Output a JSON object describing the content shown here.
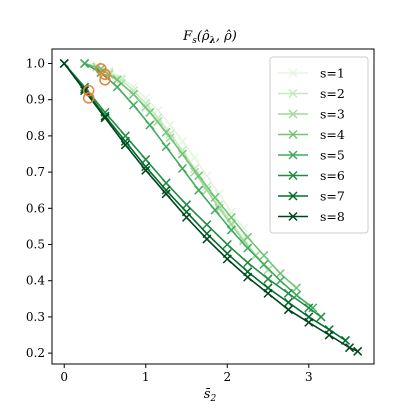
{
  "chart_data": {
    "type": "line",
    "title": "F_s(ρ̂_λ, ρ̂)",
    "xlabel": "s̄₂",
    "ylabel": "",
    "xlim": [
      -0.15,
      3.8
    ],
    "ylim": [
      0.17,
      1.04
    ],
    "xticks": [
      "0",
      "1",
      "2",
      "3"
    ],
    "yticks": [
      "0.2",
      "0.3",
      "0.4",
      "0.5",
      "0.6",
      "0.7",
      "0.8",
      "0.9",
      "1.0"
    ],
    "grid": false,
    "legend_position": "top-right",
    "series": [
      {
        "name": "s=1",
        "color": "#e5f5e0",
        "x": [
          0.25,
          0.4,
          0.55,
          0.7,
          0.85,
          1.0,
          1.15,
          1.3,
          1.45,
          1.6,
          1.75,
          1.9,
          2.05,
          2.2
        ],
        "y": [
          1.0,
          0.995,
          0.98,
          0.96,
          0.935,
          0.905,
          0.87,
          0.83,
          0.785,
          0.74,
          0.69,
          0.64,
          0.59,
          0.545
        ]
      },
      {
        "name": "s=2",
        "color": "#c7e9c0",
        "x": [
          0.25,
          0.4,
          0.55,
          0.7,
          0.85,
          1.0,
          1.15,
          1.3,
          1.45,
          1.6,
          1.75,
          1.9,
          2.05,
          2.2,
          2.35
        ],
        "y": [
          1.0,
          0.99,
          0.975,
          0.955,
          0.925,
          0.89,
          0.85,
          0.805,
          0.76,
          0.71,
          0.66,
          0.61,
          0.56,
          0.515,
          0.47
        ]
      },
      {
        "name": "s=3",
        "color": "#a1d99b",
        "x": [
          0.25,
          0.4,
          0.55,
          0.7,
          0.85,
          1.0,
          1.15,
          1.3,
          1.45,
          1.6,
          1.75,
          1.9,
          2.05,
          2.2,
          2.35,
          2.5
        ],
        "y": [
          1.0,
          0.99,
          0.97,
          0.945,
          0.915,
          0.88,
          0.84,
          0.795,
          0.75,
          0.7,
          0.65,
          0.6,
          0.555,
          0.51,
          0.47,
          0.43
        ]
      },
      {
        "name": "s=4",
        "color": "#74c476",
        "x": [
          0.25,
          0.45,
          0.65,
          0.85,
          1.05,
          1.25,
          1.45,
          1.65,
          1.85,
          2.05,
          2.25,
          2.45,
          2.65,
          2.85
        ],
        "y": [
          1.0,
          0.985,
          0.955,
          0.915,
          0.865,
          0.81,
          0.75,
          0.69,
          0.63,
          0.575,
          0.52,
          0.47,
          0.42,
          0.38
        ]
      },
      {
        "name": "s=5",
        "color": "#41ab5d",
        "x": [
          0.25,
          0.45,
          0.65,
          0.85,
          1.05,
          1.25,
          1.45,
          1.65,
          1.85,
          2.05,
          2.25,
          2.45,
          2.65,
          2.85,
          3.05
        ],
        "y": [
          1.0,
          0.975,
          0.935,
          0.885,
          0.83,
          0.77,
          0.71,
          0.65,
          0.595,
          0.54,
          0.49,
          0.445,
          0.4,
          0.36,
          0.325
        ]
      },
      {
        "name": "s=6",
        "color": "#238b45",
        "x": [
          0.0,
          0.25,
          0.5,
          0.75,
          1.0,
          1.25,
          1.5,
          1.75,
          2.0,
          2.25,
          2.5,
          2.75,
          3.0,
          3.15
        ],
        "y": [
          1.0,
          0.935,
          0.865,
          0.8,
          0.735,
          0.67,
          0.61,
          0.555,
          0.5,
          0.45,
          0.405,
          0.365,
          0.325,
          0.3
        ]
      },
      {
        "name": "s=7",
        "color": "#006d2c",
        "x": [
          0.0,
          0.25,
          0.5,
          0.75,
          1.0,
          1.25,
          1.5,
          1.75,
          2.0,
          2.25,
          2.5,
          2.75,
          3.0,
          3.25,
          3.45
        ],
        "y": [
          1.0,
          0.93,
          0.855,
          0.785,
          0.715,
          0.65,
          0.59,
          0.53,
          0.475,
          0.425,
          0.38,
          0.34,
          0.3,
          0.265,
          0.235
        ]
      },
      {
        "name": "s=8",
        "color": "#00441b",
        "x": [
          0.0,
          0.25,
          0.5,
          0.75,
          1.0,
          1.25,
          1.5,
          1.75,
          2.0,
          2.25,
          2.5,
          2.75,
          3.0,
          3.25,
          3.5,
          3.6
        ],
        "y": [
          1.0,
          0.925,
          0.85,
          0.775,
          0.705,
          0.64,
          0.575,
          0.515,
          0.46,
          0.41,
          0.365,
          0.32,
          0.285,
          0.25,
          0.215,
          0.205
        ]
      }
    ],
    "highlight_markers": {
      "color": "#e6843c",
      "x": [
        0.3,
        0.3,
        0.5,
        0.5,
        0.45
      ],
      "y": [
        0.905,
        0.925,
        0.955,
        0.97,
        0.985
      ]
    }
  }
}
